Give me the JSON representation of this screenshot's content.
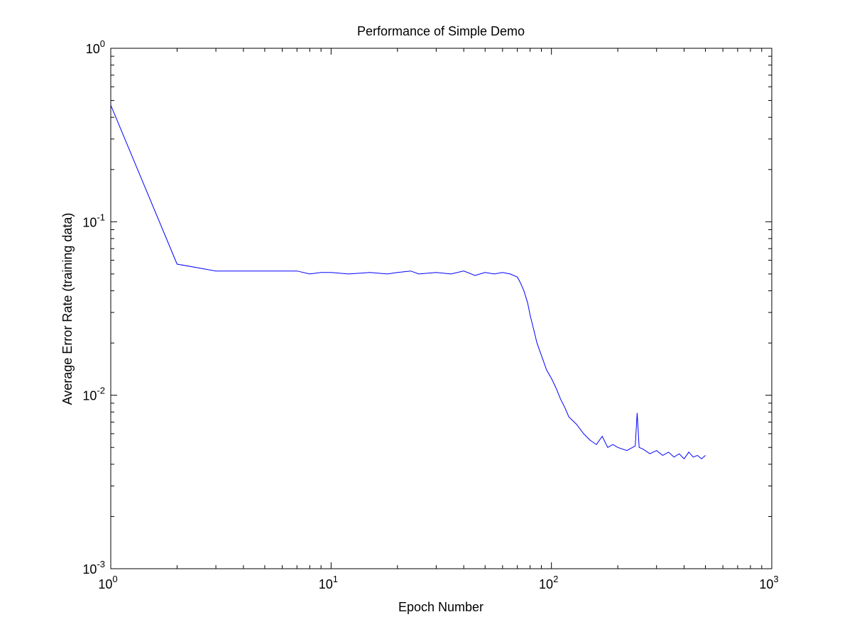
{
  "chart_data": {
    "type": "line",
    "title": "Performance of Simple Demo",
    "xlabel": "Epoch Number",
    "ylabel": "Average Error Rate (training data)",
    "xscale": "log",
    "yscale": "log",
    "xlim": [
      1,
      1000
    ],
    "ylim": [
      0.001,
      1
    ],
    "x_ticks": [
      {
        "value": 1,
        "base": "10",
        "exp": "0"
      },
      {
        "value": 10,
        "base": "10",
        "exp": "1"
      },
      {
        "value": 100,
        "base": "10",
        "exp": "2"
      },
      {
        "value": 1000,
        "base": "10",
        "exp": "3"
      }
    ],
    "y_ticks": [
      {
        "value": 0.001,
        "base": "10",
        "exp": "-3"
      },
      {
        "value": 0.01,
        "base": "10",
        "exp": "-2"
      },
      {
        "value": 0.1,
        "base": "10",
        "exp": "-1"
      },
      {
        "value": 1,
        "base": "10",
        "exp": "0"
      }
    ],
    "grid": false,
    "line_color": "#0000ff",
    "series": [
      {
        "x": [
          1,
          2,
          3,
          4,
          5,
          6,
          7,
          8,
          9,
          10,
          12,
          15,
          18,
          20,
          23,
          25,
          30,
          35,
          40,
          45,
          50,
          55,
          60,
          65,
          70,
          72,
          75,
          78,
          80,
          83,
          86,
          90,
          95,
          100,
          105,
          110,
          115,
          120,
          130,
          140,
          150,
          160,
          170,
          180,
          190,
          200,
          220,
          240,
          245,
          250,
          260,
          280,
          300,
          320,
          340,
          360,
          380,
          400,
          420,
          440,
          460,
          480,
          500
        ],
        "y": [
          0.47,
          0.057,
          0.052,
          0.052,
          0.052,
          0.052,
          0.052,
          0.05,
          0.051,
          0.051,
          0.05,
          0.051,
          0.05,
          0.051,
          0.052,
          0.05,
          0.051,
          0.05,
          0.052,
          0.049,
          0.051,
          0.05,
          0.051,
          0.05,
          0.048,
          0.045,
          0.04,
          0.034,
          0.029,
          0.024,
          0.02,
          0.017,
          0.014,
          0.0125,
          0.011,
          0.0095,
          0.0085,
          0.0075,
          0.0068,
          0.006,
          0.0055,
          0.0052,
          0.0058,
          0.005,
          0.0052,
          0.005,
          0.0048,
          0.0051,
          0.0079,
          0.005,
          0.0049,
          0.0046,
          0.0048,
          0.0045,
          0.0047,
          0.0044,
          0.0046,
          0.0043,
          0.0047,
          0.0044,
          0.0045,
          0.0043,
          0.0045
        ]
      }
    ]
  }
}
